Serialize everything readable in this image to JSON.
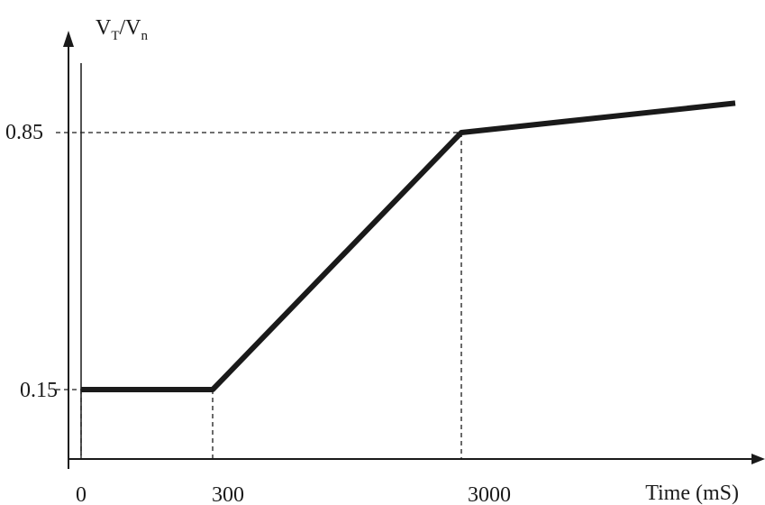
{
  "chart_data": {
    "type": "line",
    "ylabel": {
      "main": "V",
      "sub1": "T",
      "sep": "/V",
      "sub2": "n"
    },
    "xlabel": "Time (mS)",
    "xticks": [
      {
        "value": 0,
        "label": "0"
      },
      {
        "value": 300,
        "label": "300"
      },
      {
        "value": 3000,
        "label": "3000"
      }
    ],
    "yticks": [
      {
        "value": 0.15,
        "label": "0.15"
      },
      {
        "value": 0.85,
        "label": "0.85"
      }
    ],
    "series": [
      {
        "points": [
          {
            "x": 0,
            "y": 0.15
          },
          {
            "x": 300,
            "y": 0.15
          },
          {
            "x": 3000,
            "y": 0.85
          },
          {
            "x": 6000,
            "y": 0.93
          }
        ]
      }
    ],
    "reference_lines": "dashed",
    "grid": false,
    "legend": "none",
    "colors": {
      "line": "#1a1a1a",
      "axis": "#1a1a1a"
    }
  }
}
